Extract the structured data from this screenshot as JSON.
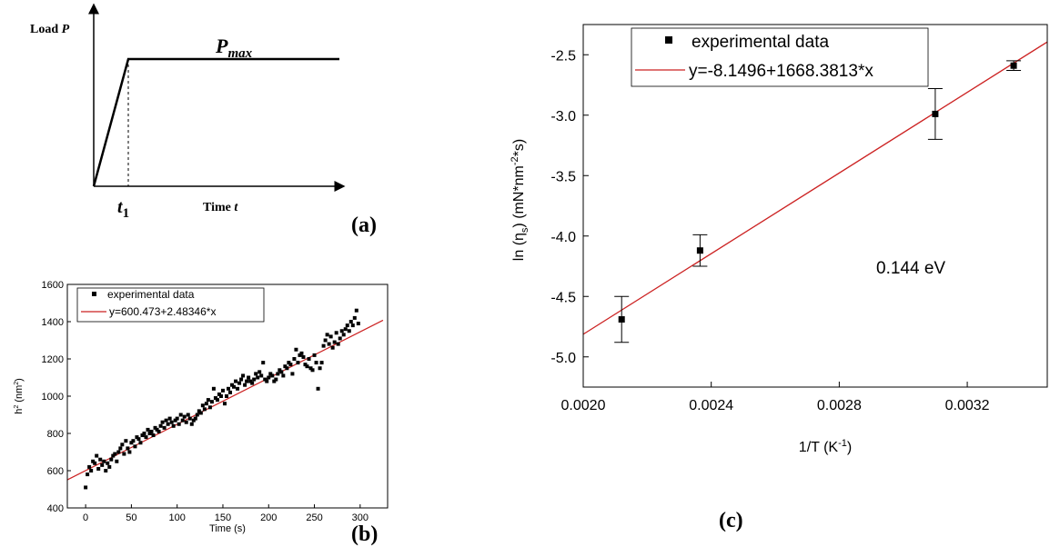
{
  "panel_a": {
    "label": "(a)",
    "y_axis_label": "Load",
    "y_axis_var": "P",
    "x_axis_label": "Time",
    "x_axis_var": "t",
    "t1_main": "t",
    "t1_sub": "1",
    "pmax_main": "P",
    "pmax_sub": "max"
  },
  "panel_b": {
    "label": "(b)",
    "legend_points": "experimental data",
    "legend_line": "y=600.473+2.48346*x",
    "xlabel": "Time (s)",
    "ylabel_base": "h",
    "ylabel_sup": "2",
    "ylabel_unit_pre": " (nm",
    "ylabel_unit_sup": "2",
    "ylabel_unit_post": ")"
  },
  "panel_c": {
    "label": "(c)",
    "legend_points": "experimental data",
    "legend_line": "y=-8.1496+1668.3813*x",
    "annotation": "0.144 eV",
    "xlabel_pre": "1/T (K",
    "xlabel_sup": "-1",
    "xlabel_post": ")",
    "ylabel_a": "ln (η",
    "ylabel_sub": "s",
    "ylabel_b": ") (mN*nm",
    "ylabel_sup": "-2",
    "ylabel_c": "*s)"
  },
  "colors": {
    "fit_line": "#cc2222",
    "points": "#000000"
  },
  "chart_data": [
    {
      "type": "line",
      "panel": "(a)",
      "x": [
        0,
        1,
        2
      ],
      "y": [
        0,
        1,
        1
      ],
      "series": [
        {
          "values": [
            0,
            1,
            1
          ]
        }
      ],
      "xlabel": "Time t",
      "ylabel": "Load P",
      "annotations": [
        "t1",
        "Pmax"
      ],
      "grid": false
    },
    {
      "type": "scatter",
      "panel": "(b)",
      "xlabel": "Time (s)",
      "ylabel": "h2 (nm2)",
      "xlim": [
        -20,
        330
      ],
      "ylim": [
        400,
        1600
      ],
      "x_ticks": [
        0,
        50,
        100,
        150,
        200,
        250,
        300
      ],
      "y_ticks": [
        400,
        600,
        800,
        1000,
        1200,
        1400,
        1600
      ],
      "legend": "top-left",
      "grid": false,
      "series": [
        {
          "name": "experimental data",
          "x": [
            0,
            2,
            4,
            6,
            8,
            10,
            12,
            14,
            16,
            18,
            20,
            22,
            24,
            26,
            28,
            30,
            32,
            34,
            36,
            38,
            40,
            42,
            44,
            46,
            48,
            50,
            52,
            54,
            56,
            58,
            60,
            62,
            64,
            66,
            68,
            70,
            72,
            74,
            76,
            78,
            80,
            82,
            84,
            86,
            88,
            90,
            92,
            94,
            96,
            98,
            100,
            102,
            104,
            106,
            108,
            110,
            112,
            114,
            116,
            118,
            120,
            122,
            124,
            126,
            128,
            130,
            132,
            134,
            136,
            138,
            140,
            142,
            144,
            146,
            148,
            150,
            152,
            154,
            156,
            158,
            160,
            162,
            164,
            166,
            168,
            170,
            172,
            174,
            176,
            178,
            180,
            182,
            184,
            186,
            188,
            190,
            192,
            194,
            196,
            198,
            200,
            202,
            204,
            206,
            208,
            210,
            212,
            214,
            216,
            218,
            220,
            222,
            224,
            226,
            228,
            230,
            232,
            234,
            236,
            238,
            240,
            242,
            244,
            246,
            248,
            250,
            252,
            254,
            256,
            258,
            260,
            262,
            264,
            266,
            268,
            270,
            272,
            274,
            276,
            278,
            280,
            282,
            284,
            286,
            288,
            290,
            292,
            294,
            296,
            298
          ],
          "y": [
            510,
            580,
            620,
            600,
            650,
            640,
            680,
            610,
            660,
            630,
            650,
            600,
            640,
            620,
            660,
            680,
            690,
            650,
            700,
            720,
            740,
            690,
            760,
            720,
            700,
            750,
            760,
            730,
            780,
            770,
            750,
            790,
            800,
            780,
            820,
            800,
            810,
            790,
            830,
            820,
            810,
            840,
            860,
            830,
            870,
            850,
            880,
            860,
            840,
            870,
            880,
            850,
            900,
            870,
            890,
            860,
            900,
            880,
            850,
            870,
            880,
            900,
            920,
            910,
            950,
            930,
            960,
            980,
            940,
            970,
            1040,
            990,
            980,
            1010,
            1000,
            1030,
            960,
            1000,
            1040,
            1020,
            1060,
            1050,
            1080,
            1040,
            1070,
            1090,
            1110,
            1060,
            1080,
            1100,
            1080,
            1070,
            1090,
            1120,
            1100,
            1130,
            1110,
            1180,
            1090,
            1080,
            1100,
            1120,
            1110,
            1080,
            1090,
            1120,
            1140,
            1130,
            1110,
            1160,
            1150,
            1180,
            1170,
            1120,
            1200,
            1250,
            1180,
            1220,
            1230,
            1210,
            1170,
            1160,
            1200,
            1150,
            1140,
            1220,
            1180,
            1040,
            1150,
            1180,
            1270,
            1300,
            1330,
            1280,
            1320,
            1260,
            1290,
            1340,
            1280,
            1310,
            1350,
            1330,
            1360,
            1380,
            1350,
            1400,
            1380,
            1420,
            1460,
            1390
          ]
        },
        {
          "name": "y=600.473+2.48346*x",
          "fit": {
            "intercept": 600.473,
            "slope": 2.48346
          },
          "x": [
            -20,
            325
          ],
          "y": [
            550.8,
            1407.6
          ]
        }
      ]
    },
    {
      "type": "scatter",
      "panel": "(c)",
      "xlabel": "1/T (K-1)",
      "ylabel": "ln (ηs) (mN*nm-2*s)",
      "xlim": [
        0.002,
        0.00345
      ],
      "ylim": [
        -5.25,
        -2.25
      ],
      "x_ticks": [
        0.002,
        0.0024,
        0.0028,
        0.0032
      ],
      "y_ticks": [
        -5.0,
        -4.5,
        -4.0,
        -3.5,
        -3.0,
        -2.5
      ],
      "legend": "top-left",
      "grid": false,
      "series": [
        {
          "name": "experimental data",
          "x": [
            0.00212,
            0.002365,
            0.0031,
            0.003345
          ],
          "y": [
            -4.69,
            -4.12,
            -2.99,
            -2.59
          ],
          "error": [
            0.19,
            0.13,
            0.21,
            0.04
          ]
        },
        {
          "name": "y=-8.1496+1668.3813*x",
          "fit": {
            "intercept": -8.1496,
            "slope": 1668.3813
          },
          "x": [
            0.002,
            0.00345
          ],
          "y": [
            -4.813,
            -2.394
          ]
        }
      ],
      "annotations": [
        "0.144 eV"
      ]
    }
  ]
}
